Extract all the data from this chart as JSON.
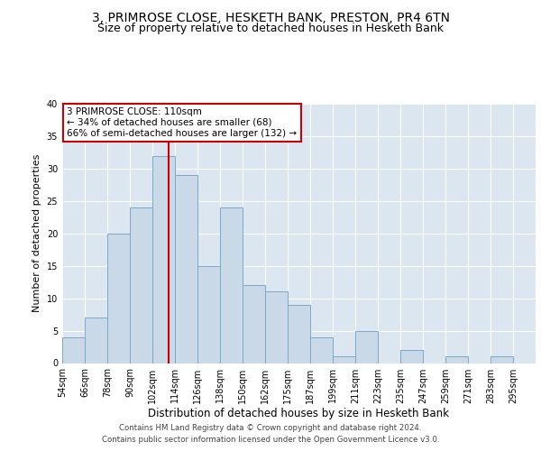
{
  "title1": "3, PRIMROSE CLOSE, HESKETH BANK, PRESTON, PR4 6TN",
  "title2": "Size of property relative to detached houses in Hesketh Bank",
  "xlabel": "Distribution of detached houses by size in Hesketh Bank",
  "ylabel": "Number of detached properties",
  "footnote1": "Contains HM Land Registry data © Crown copyright and database right 2024.",
  "footnote2": "Contains public sector information licensed under the Open Government Licence v3.0.",
  "bar_labels": [
    "54sqm",
    "66sqm",
    "78sqm",
    "90sqm",
    "102sqm",
    "114sqm",
    "126sqm",
    "138sqm",
    "150sqm",
    "162sqm",
    "175sqm",
    "187sqm",
    "199sqm",
    "211sqm",
    "223sqm",
    "235sqm",
    "247sqm",
    "259sqm",
    "271sqm",
    "283sqm",
    "295sqm"
  ],
  "bar_values": [
    4,
    7,
    20,
    24,
    32,
    29,
    15,
    24,
    12,
    11,
    9,
    4,
    1,
    5,
    0,
    2,
    0,
    1,
    0,
    1,
    0
  ],
  "bar_color": "#c9d9e8",
  "bar_edge_color": "#7aaac8",
  "vline_x": 4.7,
  "vline_color": "#cc0000",
  "annotation_text": "3 PRIMROSE CLOSE: 110sqm\n← 34% of detached houses are smaller (68)\n66% of semi-detached houses are larger (132) →",
  "annotation_box_color": "#ffffff",
  "annotation_box_edge": "#cc0000",
  "ylim": [
    0,
    40
  ],
  "background_color": "#ffffff",
  "axes_background": "#dce6f0",
  "grid_color": "#ffffff",
  "title1_fontsize": 10,
  "title2_fontsize": 9,
  "xlabel_fontsize": 8.5,
  "ylabel_fontsize": 8,
  "tick_fontsize": 7,
  "annotation_fontsize": 7.5
}
